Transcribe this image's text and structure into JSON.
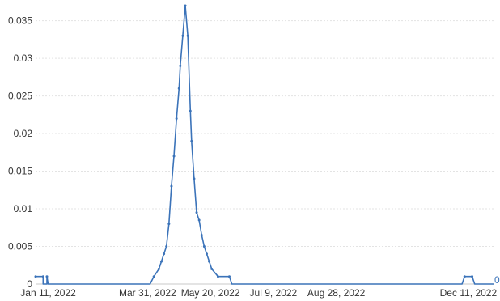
{
  "chart_data": {
    "type": "line",
    "title": "",
    "xlabel": "",
    "ylabel": "",
    "ylim": [
      0,
      0.037
    ],
    "y_ticks": [
      "0",
      "0.005",
      "0.01",
      "0.015",
      "0.02",
      "0.025",
      "0.03",
      "0.035"
    ],
    "x_ticks": [
      "Jan 11, 2022",
      "Mar 31, 2022",
      "May 20, 2022",
      "Jul 9, 2022",
      "Aug 28, 2022",
      "Dec 11, 2022"
    ],
    "x_range": [
      "2022-01-01",
      "2022-12-31"
    ],
    "grid": true,
    "legend": false,
    "line_color": "#3b73b9",
    "series": [
      {
        "points": [
          [
            "2022-01-01",
            0.001
          ],
          [
            "2022-01-07",
            0.001
          ],
          [
            "2022-01-07",
            0
          ],
          [
            "2022-01-10",
            0
          ],
          [
            "2022-01-10",
            0.001
          ],
          [
            "2022-01-11",
            0
          ],
          [
            "2022-04-02",
            0
          ],
          [
            "2022-04-05",
            0.001
          ],
          [
            "2022-04-09",
            0.002
          ],
          [
            "2022-04-11",
            0.003
          ],
          [
            "2022-04-13",
            0.004
          ],
          [
            "2022-04-15",
            0.005
          ],
          [
            "2022-04-17",
            0.008
          ],
          [
            "2022-04-19",
            0.013
          ],
          [
            "2022-04-21",
            0.017
          ],
          [
            "2022-04-23",
            0.022
          ],
          [
            "2022-04-25",
            0.026
          ],
          [
            "2022-04-26",
            0.029
          ],
          [
            "2022-04-28",
            0.033
          ],
          [
            "2022-04-30",
            0.037
          ],
          [
            "2022-05-02",
            0.033
          ],
          [
            "2022-05-04",
            0.023
          ],
          [
            "2022-05-05",
            0.019
          ],
          [
            "2022-05-07",
            0.014
          ],
          [
            "2022-05-09",
            0.0095
          ],
          [
            "2022-05-11",
            0.0085
          ],
          [
            "2022-05-13",
            0.0065
          ],
          [
            "2022-05-15",
            0.005
          ],
          [
            "2022-05-17",
            0.004
          ],
          [
            "2022-05-19",
            0.003
          ],
          [
            "2022-05-21",
            0.002
          ],
          [
            "2022-05-26",
            0.001
          ],
          [
            "2022-06-04",
            0.001
          ],
          [
            "2022-06-06",
            0
          ],
          [
            "2022-12-06",
            0
          ],
          [
            "2022-12-08",
            0.001
          ],
          [
            "2022-12-14",
            0.001
          ],
          [
            "2022-12-16",
            0
          ],
          [
            "2022-12-31",
            0
          ]
        ]
      }
    ],
    "end_label": "0"
  }
}
